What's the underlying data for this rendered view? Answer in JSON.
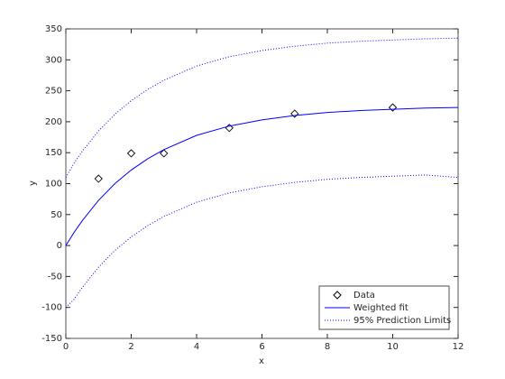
{
  "chart_data": {
    "type": "line",
    "xlabel": "x",
    "ylabel": "y",
    "xlim": [
      0,
      12
    ],
    "ylim": [
      -150,
      350
    ],
    "xticks": [
      0,
      2,
      4,
      6,
      8,
      10,
      12
    ],
    "yticks": [
      -150,
      -100,
      -50,
      0,
      50,
      100,
      150,
      200,
      250,
      300,
      350
    ],
    "grid": false,
    "legend": "southeast",
    "series": [
      {
        "name": "Data",
        "color": "#000000",
        "style": "markers",
        "x": [
          1,
          2,
          3,
          5,
          7,
          10
        ],
        "values": [
          108,
          149,
          149,
          190,
          213,
          223
        ]
      },
      {
        "name": "Weighted fit",
        "color": "#0000ff",
        "style": "solid",
        "x": [
          0,
          0.25,
          0.5,
          1,
          1.5,
          2,
          2.5,
          3,
          4,
          5,
          6,
          7,
          8,
          9,
          10,
          11,
          12
        ],
        "values": [
          0,
          21,
          40,
          73,
          100,
          122,
          140,
          155,
          178,
          193,
          203,
          210,
          215,
          218,
          220,
          222,
          223
        ]
      },
      {
        "name": "95% Prediction Limits",
        "color": "#0000ff",
        "style": "dotted",
        "x": [
          0,
          0.25,
          0.5,
          1,
          1.5,
          2,
          2.5,
          3,
          4,
          5,
          6,
          7,
          8,
          9,
          10,
          11,
          12
        ],
        "values": [
          110,
          133,
          152,
          185,
          212,
          234,
          252,
          267,
          290,
          305,
          315,
          322,
          327,
          330,
          332,
          334,
          335
        ]
      },
      {
        "color": "#0000ff",
        "style": "dotted",
        "x": [
          0,
          0.25,
          0.5,
          1,
          1.5,
          2,
          2.5,
          3,
          4,
          5,
          6,
          7,
          8,
          9,
          10,
          11,
          12
        ],
        "values": [
          -100,
          -87,
          -68,
          -35,
          -8,
          14,
          32,
          47,
          70,
          85,
          95,
          102,
          107,
          110,
          112,
          114,
          110
        ]
      }
    ]
  }
}
